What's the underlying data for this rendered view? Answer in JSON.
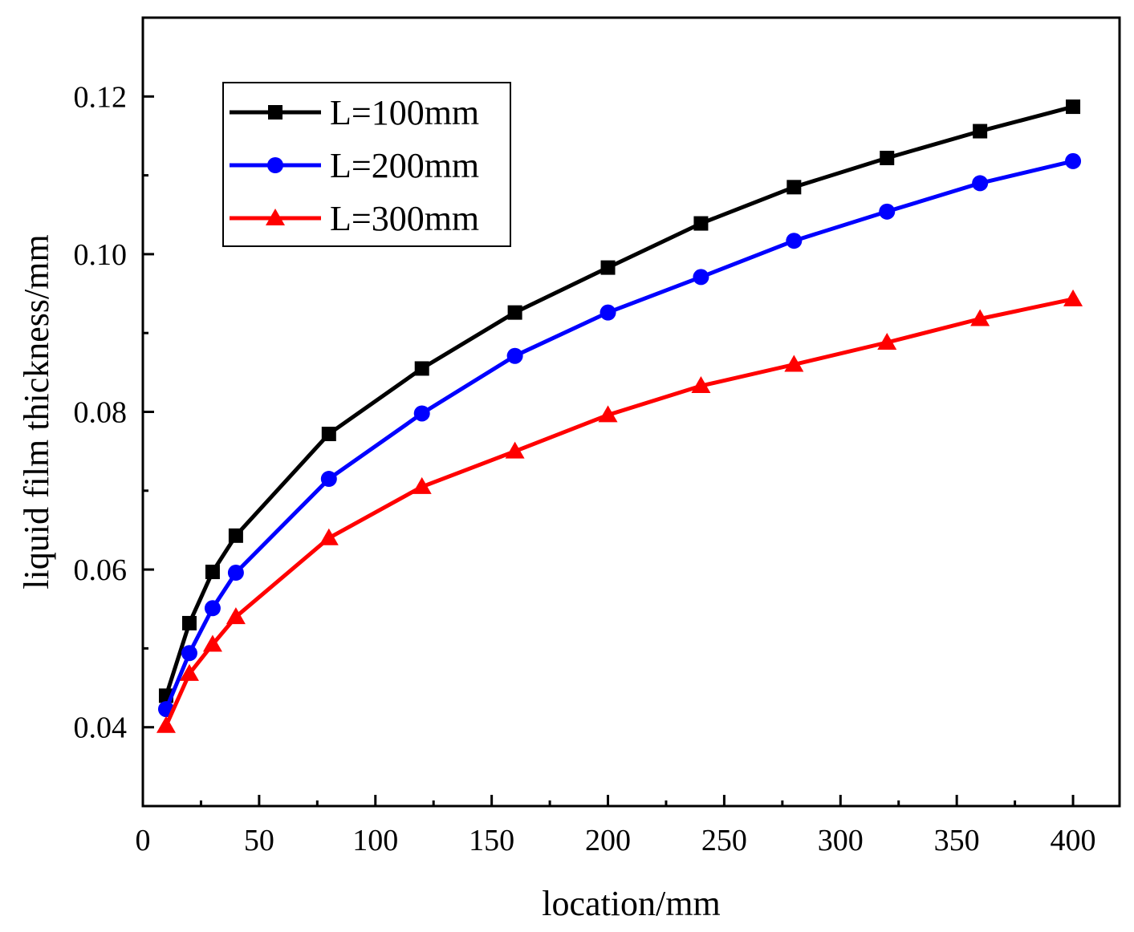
{
  "chart_data": {
    "type": "line",
    "title": "",
    "xlabel": "location/mm",
    "ylabel": "liquid film thickness/mm",
    "xlim": [
      0,
      420
    ],
    "ylim": [
      0.03,
      0.13
    ],
    "xticks": [
      0,
      50,
      100,
      150,
      200,
      250,
      300,
      350,
      400
    ],
    "xtick_labels": [
      "0",
      "50",
      "100",
      "150",
      "200",
      "250",
      "300",
      "350",
      "400"
    ],
    "yticks": [
      0.04,
      0.06,
      0.08,
      0.1,
      0.12
    ],
    "ytick_labels": [
      "0.04",
      "0.06",
      "0.08",
      "0.10",
      "0.12"
    ],
    "grid": false,
    "legend_position": "top-left",
    "x": [
      10,
      20,
      30,
      40,
      80,
      120,
      160,
      200,
      240,
      280,
      320,
      360,
      400
    ],
    "series": [
      {
        "name": "L=100mm",
        "color": "#000000",
        "marker": "square",
        "values": [
          0.044,
          0.0532,
          0.0597,
          0.0643,
          0.0772,
          0.0855,
          0.0926,
          0.0983,
          0.1039,
          0.1085,
          0.1122,
          0.1156,
          0.1187
        ]
      },
      {
        "name": "L=200mm",
        "color": "#0000ff",
        "marker": "circle",
        "values": [
          0.0423,
          0.0494,
          0.0551,
          0.0596,
          0.0715,
          0.0798,
          0.0871,
          0.0926,
          0.0971,
          0.1017,
          0.1054,
          0.109,
          0.1118
        ]
      },
      {
        "name": "L=300mm",
        "color": "#ff0000",
        "marker": "triangle",
        "values": [
          0.0402,
          0.0468,
          0.0505,
          0.054,
          0.064,
          0.0705,
          0.075,
          0.0796,
          0.0833,
          0.086,
          0.0888,
          0.0918,
          0.0943
        ]
      }
    ]
  }
}
